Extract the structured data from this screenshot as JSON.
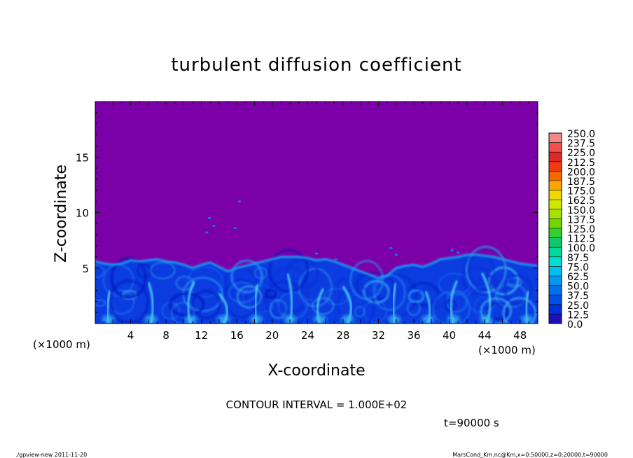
{
  "chart_data": {
    "type": "heatmap",
    "title": "turbulent diffusion coefficient",
    "xlabel": "X-coordinate",
    "ylabel": "Z-coordinate",
    "x_unit": "(×1000 m)",
    "y_unit": "(×1000 m)",
    "xlim": [
      0,
      50
    ],
    "ylim": [
      0,
      20
    ],
    "x_ticks": [
      4,
      8,
      12,
      16,
      20,
      24,
      28,
      32,
      36,
      40,
      44,
      48
    ],
    "y_ticks": [
      5,
      10,
      15
    ],
    "boundary_layer_top": [
      [
        0,
        5.6
      ],
      [
        1,
        5.4
      ],
      [
        2,
        5.3
      ],
      [
        3,
        5.4
      ],
      [
        4,
        5.7
      ],
      [
        5,
        5.6
      ],
      [
        6,
        5.7
      ],
      [
        7,
        5.8
      ],
      [
        8,
        5.6
      ],
      [
        9,
        5.5
      ],
      [
        10,
        5.3
      ],
      [
        11,
        5.0
      ],
      [
        12,
        5.3
      ],
      [
        13,
        5.5
      ],
      [
        14,
        5.1
      ],
      [
        15,
        4.7
      ],
      [
        16,
        5.0
      ],
      [
        17,
        5.2
      ],
      [
        18,
        5.4
      ],
      [
        19,
        5.6
      ],
      [
        20,
        5.8
      ],
      [
        21,
        6.0
      ],
      [
        22,
        6.0
      ],
      [
        23,
        6.0
      ],
      [
        24,
        5.9
      ],
      [
        25,
        5.7
      ],
      [
        26,
        5.8
      ],
      [
        27,
        5.6
      ],
      [
        28,
        5.3
      ],
      [
        29,
        5.0
      ],
      [
        30,
        4.7
      ],
      [
        31,
        4.4
      ],
      [
        32,
        4.1
      ],
      [
        33,
        4.3
      ],
      [
        34,
        5.0
      ],
      [
        35,
        5.2
      ],
      [
        36,
        5.3
      ],
      [
        37,
        5.1
      ],
      [
        38,
        5.4
      ],
      [
        39,
        5.8
      ],
      [
        40,
        5.9
      ],
      [
        41,
        6.0
      ],
      [
        42,
        6.2
      ],
      [
        43,
        6.2
      ],
      [
        44,
        6.1
      ],
      [
        45,
        6.0
      ],
      [
        46,
        5.8
      ],
      [
        47,
        5.6
      ],
      [
        48,
        5.4
      ],
      [
        49,
        5.3
      ],
      [
        50,
        5.2
      ]
    ],
    "plumes_x": [
      1.5,
      6.3,
      10.8,
      14.5,
      18.2,
      22.0,
      25.4,
      28.5,
      33.8,
      37.6,
      40.5,
      44.2,
      48.8
    ],
    "colorbar": {
      "levels": [
        "250.0",
        "237.5",
        "225.0",
        "212.5",
        "200.0",
        "187.5",
        "175.0",
        "162.5",
        "150.0",
        "137.5",
        "125.0",
        "112.5",
        "100.0",
        "87.5",
        "75.0",
        "62.5",
        "50.0",
        "37.5",
        "25.0",
        "12.5",
        "0.0"
      ],
      "colors": [
        "#f08888",
        "#f05050",
        "#e02828",
        "#f03c10",
        "#f06a00",
        "#f8a800",
        "#f0d800",
        "#d0e800",
        "#a8e000",
        "#70d800",
        "#30d030",
        "#10c868",
        "#00d8a0",
        "#00e0d0",
        "#00c0f0",
        "#0098f0",
        "#0070f0",
        "#0050e8",
        "#0030d8",
        "#2010b8",
        "#7800a8"
      ],
      "background_color": "#7b00a8"
    },
    "contour_interval": "CONTOUR INTERVAL = 1.000E+02",
    "time_label": "t=90000 s"
  },
  "footer": {
    "left": "./gpview-new  2011-11-20",
    "right": "MarsCond_Km.nc@Km,x=0:50000,z=0:20000,t=90000"
  }
}
